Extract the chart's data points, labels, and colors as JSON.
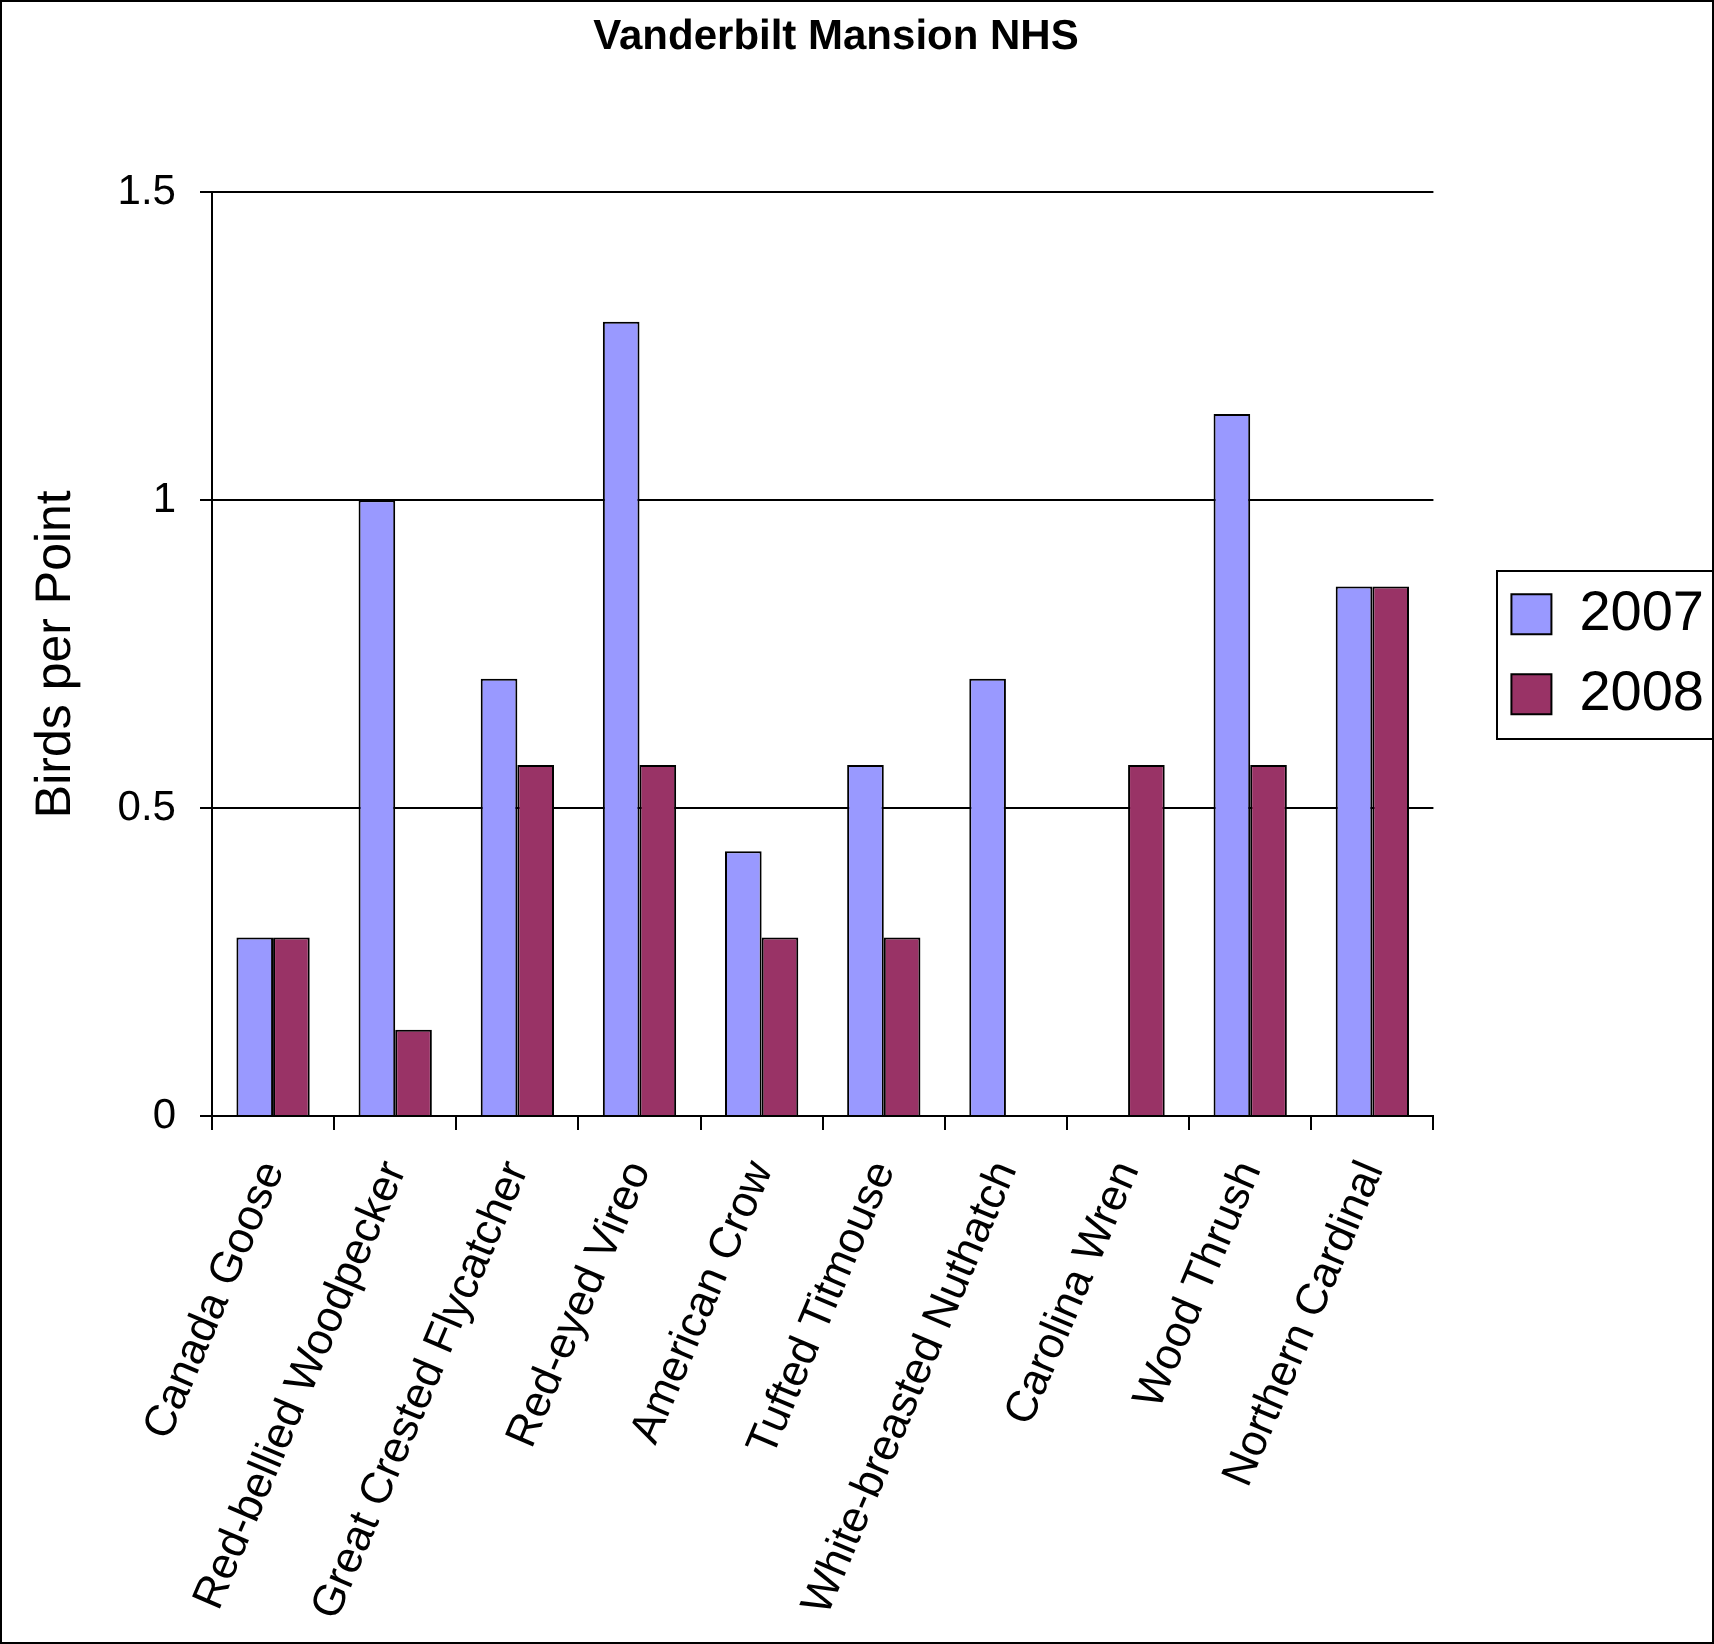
{
  "chart_data": {
    "type": "bar",
    "title": "Vanderbilt Mansion NHS",
    "ylabel": "Birds per Point",
    "categories": [
      "Canada Goose",
      "Red-bellied Woodpecker",
      "Great Crested Flycatcher",
      "Red-eyed Vireo",
      "American Crow",
      "Tufted Titmouse",
      "White-breasted Nuthatch",
      "Carolina Wren",
      "Wood Thrush",
      "Northern Cardinal"
    ],
    "series": [
      {
        "name": "2007",
        "color": "#9999ff",
        "values": [
          0.29,
          1,
          0.71,
          1.29,
          0.43,
          0.57,
          0.71,
          0,
          1.14,
          0.86
        ]
      },
      {
        "name": "2008",
        "color": "#993366",
        "values": [
          0.29,
          0.14,
          0.57,
          0.57,
          0.29,
          0.29,
          0,
          0.57,
          0.57,
          0.86
        ]
      }
    ],
    "ylim": [
      0,
      1.5
    ],
    "yticks": [
      0,
      0.5,
      1,
      1.5
    ],
    "grid": "y",
    "legend": "right"
  }
}
